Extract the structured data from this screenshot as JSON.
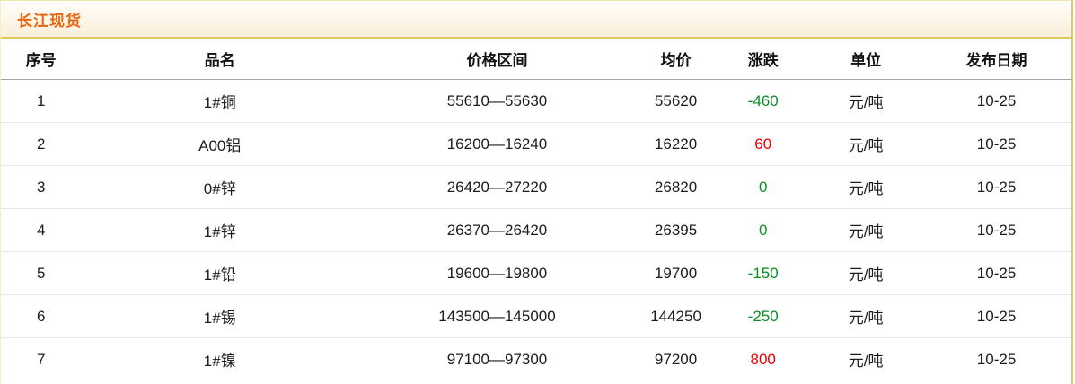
{
  "panel": {
    "title": "长江现货"
  },
  "table": {
    "columns": [
      "序号",
      "品名",
      "价格区间",
      "均价",
      "涨跌",
      "单位",
      "发布日期"
    ],
    "rows": [
      {
        "no": "1",
        "name": "1#铜",
        "range": "55610—55630",
        "avg": "55620",
        "change": "-460",
        "direction": "down",
        "unit": "元/吨",
        "date": "10-25"
      },
      {
        "no": "2",
        "name": "A00铝",
        "range": "16200—16240",
        "avg": "16220",
        "change": "60",
        "direction": "up",
        "unit": "元/吨",
        "date": "10-25"
      },
      {
        "no": "3",
        "name": "0#锌",
        "range": "26420—27220",
        "avg": "26820",
        "change": "0",
        "direction": "flat",
        "unit": "元/吨",
        "date": "10-25"
      },
      {
        "no": "4",
        "name": "1#锌",
        "range": "26370—26420",
        "avg": "26395",
        "change": "0",
        "direction": "flat",
        "unit": "元/吨",
        "date": "10-25"
      },
      {
        "no": "5",
        "name": "1#铅",
        "range": "19600—19800",
        "avg": "19700",
        "change": "-150",
        "direction": "down",
        "unit": "元/吨",
        "date": "10-25"
      },
      {
        "no": "6",
        "name": "1#锡",
        "range": "143500—145000",
        "avg": "144250",
        "change": "-250",
        "direction": "down",
        "unit": "元/吨",
        "date": "10-25"
      },
      {
        "no": "7",
        "name": "1#镍",
        "range": "97100—97300",
        "avg": "97200",
        "change": "800",
        "direction": "up",
        "unit": "元/吨",
        "date": "10-25"
      }
    ]
  },
  "colors": {
    "up_red": "#ee0000",
    "down_green": "#0a8f21",
    "flat_green": "#0a8f21",
    "title_orange": "#e8650f",
    "gold_border": "#e5c84e"
  }
}
